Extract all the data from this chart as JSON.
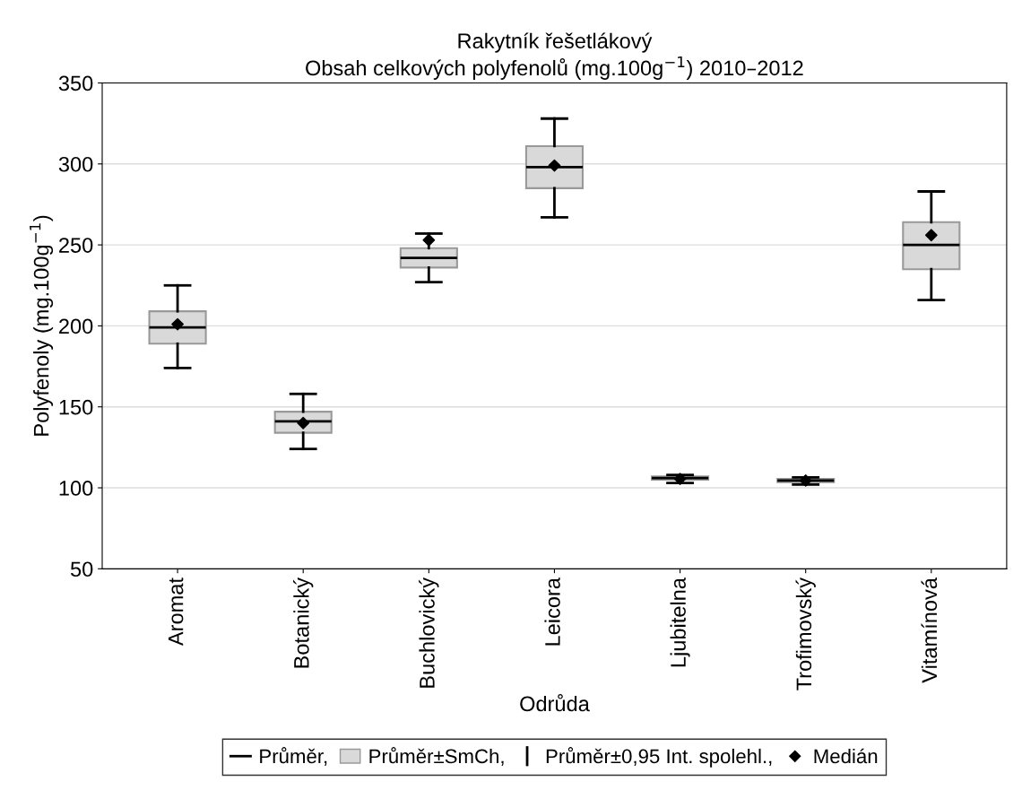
{
  "chart_data": {
    "type": "box",
    "title": "Rakytník řešetlákový",
    "subtitle": "Obsah celkových polyfenolů (mg.100g$^{−1}$) 2010–2012",
    "xlabel": "Odrůda",
    "ylabel": "Polyfenoly (mg.100g$^{−1}$)",
    "categories": [
      "Aromat",
      "Botanický",
      "Buchlovický",
      "Leicora",
      "Ljubitelna",
      "Trofimovský",
      "Vitamínová"
    ],
    "series": [
      {
        "name": "Průměr±SmCh,",
        "color": "#d9d9d9",
        "boxes": [
          {
            "low": 174,
            "q1": 189,
            "median": 199,
            "q3": 209,
            "high": 225
          },
          {
            "low": 124,
            "q1": 134,
            "median": 141,
            "q3": 147,
            "high": 158
          },
          {
            "low": 227,
            "q1": 236,
            "median": 242,
            "q3": 248,
            "high": 257
          },
          {
            "low": 267,
            "q1": 285,
            "median": 298,
            "q3": 311,
            "high": 328
          },
          {
            "low": 103,
            "q1": 105,
            "median": 106,
            "q3": 107,
            "high": 108
          },
          {
            "low": 102,
            "q1": 103.5,
            "median": 104.5,
            "q3": 105.5,
            "high": 106.5
          },
          {
            "low": 216,
            "q1": 235,
            "median": 250,
            "q3": 264,
            "high": 283
          }
        ]
      },
      {
        "type": "scatter",
        "name": "Medián",
        "color": "#000000",
        "marker": "diamond",
        "x": [
          "Aromat",
          "Botanický",
          "Buchlovický",
          "Leicora",
          "Ljubitelna",
          "Trofimovský",
          "Vitamínová"
        ],
        "values": [
          201,
          140,
          253,
          299,
          105.5,
          104.5,
          256
        ]
      }
    ],
    "annotations": [
      "Průměr,",
      "Průměr±0,95 Int. spolehl.,"
    ],
    "ylim": [
      50,
      350
    ],
    "yticks": [
      50,
      100,
      150,
      200,
      250,
      300,
      350
    ],
    "grid": "y",
    "legend": "bottom"
  }
}
